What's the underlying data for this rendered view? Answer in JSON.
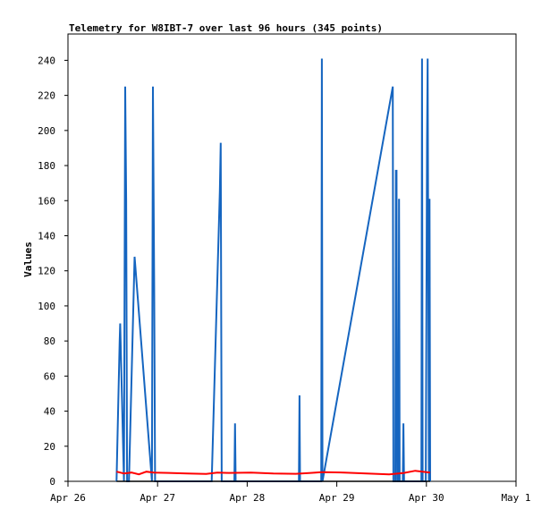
{
  "chart_data": {
    "type": "line",
    "title": "Telemetry for W8IBT-7 over last 96 hours (345 points)",
    "xlabel": "",
    "ylabel": "Values",
    "xlim": [
      "2024-04-26",
      "2024-05-01"
    ],
    "ylim": [
      0,
      255
    ],
    "grid": false,
    "x_tick_labels": [
      "Apr 26",
      "Apr 27",
      "Apr 28",
      "Apr 29",
      "Apr 30",
      "May 1"
    ],
    "y_ticks": [
      0,
      20,
      40,
      60,
      80,
      100,
      120,
      140,
      160,
      180,
      200,
      220,
      240
    ],
    "series": [
      {
        "color": "#1565c0",
        "x": [
          "2024-04-26T13:00",
          "2024-04-26T13:50",
          "2024-04-26T14:00",
          "2024-04-26T15:00",
          "2024-04-26T15:20",
          "2024-04-26T15:35",
          "2024-04-26T15:50",
          "2024-04-26T16:05",
          "2024-04-26T16:20",
          "2024-04-26T17:50",
          "2024-04-26T22:30",
          "2024-04-26T22:45",
          "2024-04-26T23:05",
          "2024-04-26T23:20",
          "2024-04-26T23:35",
          "2024-04-27T14:30",
          "2024-04-27T16:40",
          "2024-04-27T16:55",
          "2024-04-27T17:10",
          "2024-04-27T17:20",
          "2024-04-27T17:35",
          "2024-04-27T20:35",
          "2024-04-27T20:45",
          "2024-04-27T20:55",
          "2024-04-28T13:50",
          "2024-04-28T14:00",
          "2024-04-28T14:10",
          "2024-04-28T19:50",
          "2024-04-28T20:00",
          "2024-04-28T20:10",
          "2024-04-29T15:00",
          "2024-04-29T15:10",
          "2024-04-29T15:40",
          "2024-04-29T15:50",
          "2024-04-29T16:00",
          "2024-04-29T16:10",
          "2024-04-29T16:30",
          "2024-04-29T16:40",
          "2024-04-29T16:50",
          "2024-04-29T17:40",
          "2024-04-29T17:50",
          "2024-04-29T18:00",
          "2024-04-29T22:40",
          "2024-04-29T22:50",
          "2024-04-29T23:00",
          "2024-04-29T23:50",
          "2024-04-30T00:00",
          "2024-04-30T00:10",
          "2024-04-30T00:20",
          "2024-04-30T00:40",
          "2024-04-30T00:50",
          "2024-04-30T01:00"
        ],
        "y": [
          0,
          80,
          90,
          0,
          225,
          160,
          0,
          0,
          0,
          128,
          0,
          225,
          112,
          0,
          0,
          0,
          165,
          193,
          0,
          0,
          0,
          0,
          33,
          0,
          0,
          49,
          0,
          0,
          241,
          0,
          225,
          0,
          0,
          177,
          177,
          0,
          0,
          161,
          0,
          0,
          33,
          0,
          0,
          241,
          0,
          0,
          97,
          193,
          241,
          0,
          161,
          0
        ]
      },
      {
        "color": "#ff0000",
        "x": [
          "2024-04-26T13:00",
          "2024-04-26T15:00",
          "2024-04-26T17:00",
          "2024-04-26T19:00",
          "2024-04-26T21:00",
          "2024-04-26T23:00",
          "2024-04-27T03:00",
          "2024-04-27T08:00",
          "2024-04-27T13:00",
          "2024-04-27T16:00",
          "2024-04-27T19:00",
          "2024-04-28T01:00",
          "2024-04-28T07:00",
          "2024-04-28T13:00",
          "2024-04-28T17:00",
          "2024-04-28T20:00",
          "2024-04-29T02:00",
          "2024-04-29T08:00",
          "2024-04-29T14:00",
          "2024-04-29T18:00",
          "2024-04-29T21:00",
          "2024-04-30T00:00",
          "2024-04-30T01:00"
        ],
        "y": [
          5.5,
          4.5,
          5,
          4,
          5.5,
          5,
          4.8,
          4.5,
          4.2,
          5,
          4.8,
          5,
          4.5,
          4.3,
          4.8,
          5.2,
          5,
          4.5,
          4,
          4.8,
          6,
          5.2,
          5
        ]
      },
      {
        "color": "#000000",
        "x": [
          "2024-04-26T13:00",
          "2024-04-30T01:00"
        ],
        "y": [
          0,
          0
        ]
      }
    ]
  }
}
